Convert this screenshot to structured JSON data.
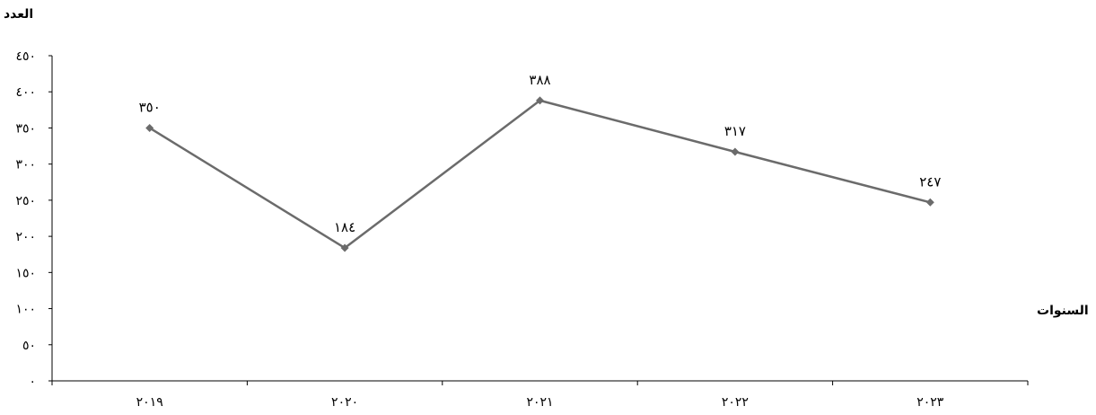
{
  "chart_data": {
    "type": "line",
    "ylabel": "العدد",
    "xlabel": "السنوات",
    "categories": [
      "٢٠١٩",
      "٢٠٢٠",
      "٢٠٢١",
      "٢٠٢٢",
      "٢٠٢٣"
    ],
    "values": [
      350,
      184,
      388,
      317,
      247
    ],
    "data_labels": [
      "٣٥٠",
      "١٨٤",
      "٣٨٨",
      "٣١٧",
      "٢٤٧"
    ],
    "ylim": [
      0,
      450
    ],
    "yticks": [
      0,
      50,
      100,
      150,
      200,
      250,
      300,
      350,
      400,
      450
    ],
    "ytick_labels": [
      "٠",
      "٥٠",
      "١٠٠",
      "١٥٠",
      "٢٠٠",
      "٢٥٠",
      "٣٠٠",
      "٣٥٠",
      "٤٠٠",
      "٤٥٠"
    ],
    "grid": false,
    "legend": "none",
    "line_color": "#6b6b6b",
    "marker": "diamond"
  }
}
